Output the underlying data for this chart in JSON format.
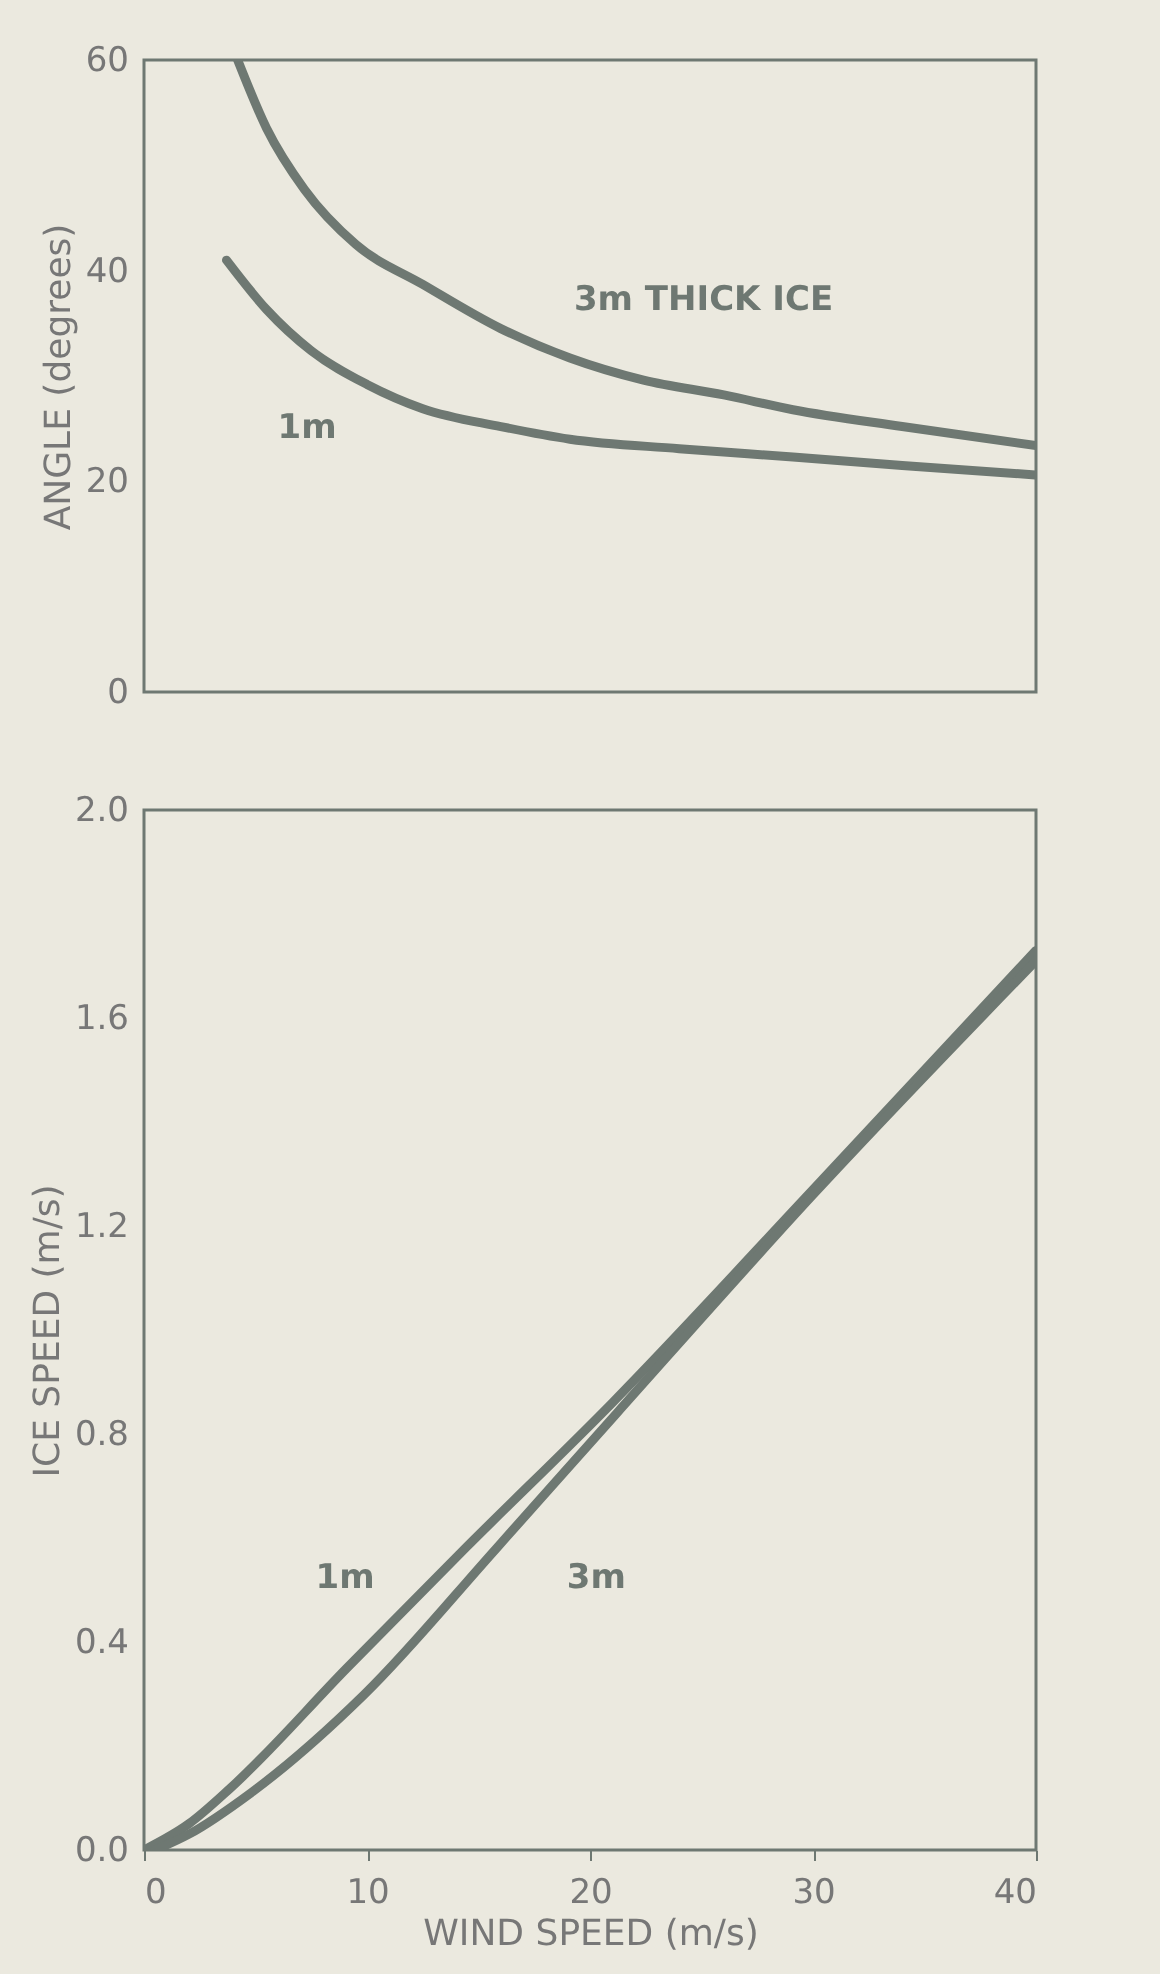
{
  "chart_data": [
    {
      "type": "line",
      "ylabel": "ANGLE (degrees)",
      "xlim": [
        0,
        40
      ],
      "ylim": [
        0,
        60
      ],
      "yticks": [
        0,
        20,
        40,
        60
      ],
      "tick_labels": "y",
      "series": [
        {
          "name": "3m THICK ICE",
          "color": "#6e7872",
          "x": [
            4.2,
            5.5,
            7.2,
            9.5,
            12.5,
            16,
            19.1,
            22.4,
            26,
            29.1,
            34,
            40
          ],
          "values": [
            60,
            53.5,
            47.7,
            42.5,
            38.7,
            34.5,
            31.7,
            29.6,
            28.2,
            26.8,
            25.2,
            23.4
          ]
        },
        {
          "name": "1m",
          "color": "#6e7872",
          "x": [
            3.7,
            5.5,
            7.5,
            10,
            12.5,
            16,
            19.1,
            24,
            29.1,
            34,
            40
          ],
          "values": [
            41,
            36.3,
            32.4,
            29.2,
            26.9,
            25.2,
            24,
            23.1,
            22.3,
            21.5,
            20.6
          ]
        }
      ],
      "grid": false
    },
    {
      "type": "line",
      "xlabel": "WIND SPEED (m/s)",
      "ylabel": "ICE SPEED (m/s)",
      "xlim": [
        0,
        40
      ],
      "ylim": [
        0,
        2.0
      ],
      "xticks": [
        0,
        10,
        20,
        30,
        40
      ],
      "yticks": [
        {
          "value": 0,
          "label": "0.0"
        },
        {
          "value": 0.4,
          "label": "0.4"
        },
        {
          "value": 0.8,
          "label": "0.8"
        },
        {
          "value": 1.2,
          "label": "1.2"
        },
        {
          "value": 1.6,
          "label": "1.6"
        },
        {
          "value": 2.0,
          "label": "2.0"
        }
      ],
      "grid": false,
      "series": [
        {
          "name": "1m",
          "color": "#6e7872",
          "x": [
            0,
            2,
            3.9,
            9.1,
            14.4,
            21,
            30,
            40
          ],
          "values": [
            0,
            0.05,
            0.12,
            0.35,
            0.58,
            0.86,
            1.27,
            1.73
          ]
        },
        {
          "name": "3m",
          "color": "#6e7872",
          "x": [
            0.5,
            2,
            4.8,
            9.9,
            15.8,
            21.2,
            30,
            40
          ],
          "values": [
            0,
            0.03,
            0.11,
            0.3,
            0.58,
            0.84,
            1.26,
            1.71
          ]
        }
      ]
    }
  ]
}
